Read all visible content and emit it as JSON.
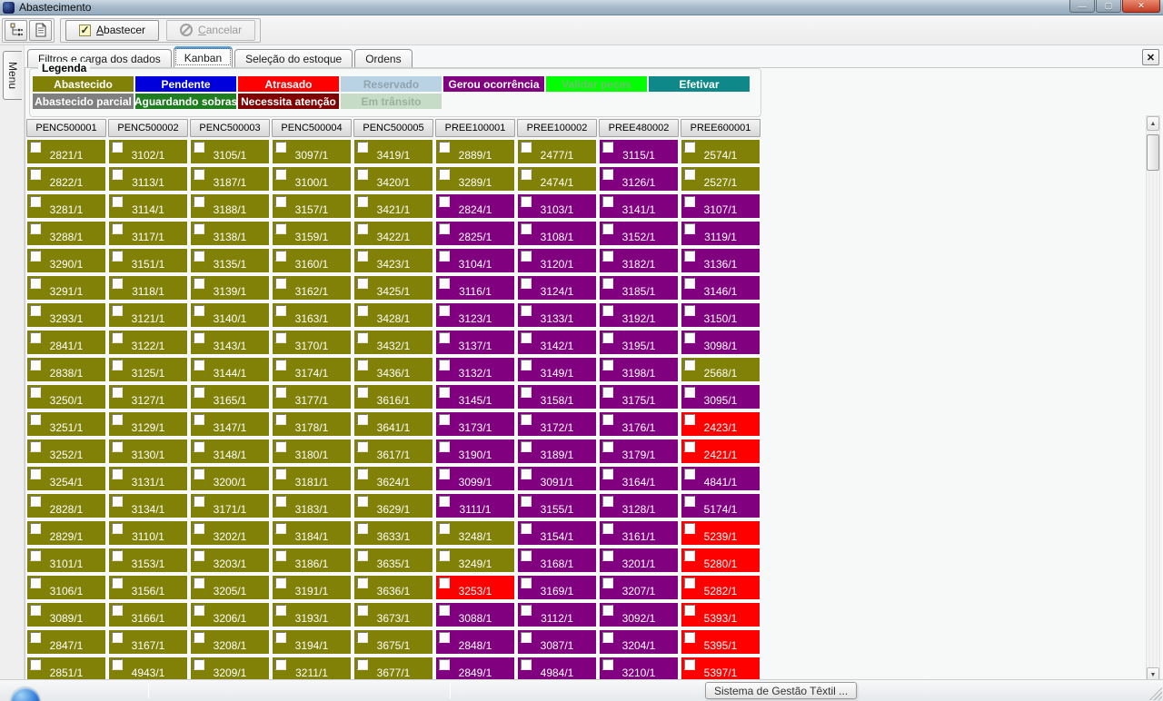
{
  "window": {
    "title": "Abastecimento"
  },
  "icons": {
    "minimize": "—",
    "maximize": "▢",
    "close": "✕",
    "check": "✓",
    "tab_close": "✕",
    "scroll_up": "▲",
    "scroll_down": "▼"
  },
  "toolbar": {
    "abastecer_label": "Abastecer",
    "cancelar_label": "Cancelar"
  },
  "menu_tab_label": "Menu",
  "tabs": {
    "items": [
      {
        "label": "Filtros e carga dos dados",
        "active": false
      },
      {
        "label": "Kanban",
        "active": true
      },
      {
        "label": "Seleção do estoque",
        "active": false
      },
      {
        "label": "Ordens",
        "active": false
      }
    ]
  },
  "legend": {
    "title": "Legenda",
    "rows": [
      [
        {
          "label": "Abastecido",
          "bg": "#818108",
          "fg": "#ffffff"
        },
        {
          "label": "Pendente",
          "bg": "#0000dd",
          "fg": "#ffffff"
        },
        {
          "label": "Atrasado",
          "bg": "#ff0000",
          "fg": "#ffffff"
        },
        {
          "label": "Reservado",
          "bg": "#bad3e4",
          "fg": "#8fa3b0"
        },
        {
          "label": "Gerou ocorrência",
          "bg": "#800080",
          "fg": "#ffffff"
        },
        {
          "label": "Validar peças",
          "bg": "#00ff00",
          "fg": "#6fbf6f"
        },
        {
          "label": "Efetivar",
          "bg": "#0e8888",
          "fg": "#ffffff"
        }
      ],
      [
        {
          "label": "Abastecido parcial",
          "bg": "#7f7f7f",
          "fg": "#ffffff"
        },
        {
          "label": "Aguardando sobras",
          "bg": "#1e7d1e",
          "fg": "#ffffff"
        },
        {
          "label": "Necessita atenção",
          "bg": "#800000",
          "fg": "#ffffff"
        },
        {
          "label": "Em trânsito",
          "bg": "#c7dcc7",
          "fg": "#9cb09c"
        }
      ]
    ]
  },
  "kanban": {
    "status_map": {
      "A": {
        "name": "abastecido",
        "color": "#818108"
      },
      "G": {
        "name": "gerou-ocorrencia",
        "color": "#800080"
      },
      "R": {
        "name": "atrasado",
        "color": "#ff0000"
      }
    },
    "columns": [
      {
        "header": "PENC500001",
        "cells": [
          "2821/1|A",
          "2822/1|A",
          "3281/1|A",
          "3288/1|A",
          "3290/1|A",
          "3291/1|A",
          "3293/1|A",
          "2841/1|A",
          "2838/1|A",
          "3250/1|A",
          "3251/1|A",
          "3252/1|A",
          "3254/1|A",
          "2828/1|A",
          "2829/1|A",
          "3101/1|A",
          "3106/1|A",
          "3089/1|A",
          "2847/1|A",
          "2851/1|A"
        ]
      },
      {
        "header": "PENC500002",
        "cells": [
          "3102/1|A",
          "3113/1|A",
          "3114/1|A",
          "3117/1|A",
          "3151/1|A",
          "3118/1|A",
          "3121/1|A",
          "3122/1|A",
          "3125/1|A",
          "3127/1|A",
          "3129/1|A",
          "3130/1|A",
          "3131/1|A",
          "3134/1|A",
          "3110/1|A",
          "3153/1|A",
          "3156/1|A",
          "3166/1|A",
          "3167/1|A",
          "4943/1|A"
        ]
      },
      {
        "header": "PENC500003",
        "cells": [
          "3105/1|A",
          "3187/1|A",
          "3188/1|A",
          "3138/1|A",
          "3135/1|A",
          "3139/1|A",
          "3140/1|A",
          "3143/1|A",
          "3144/1|A",
          "3165/1|A",
          "3147/1|A",
          "3148/1|A",
          "3200/1|A",
          "3171/1|A",
          "3202/1|A",
          "3203/1|A",
          "3205/1|A",
          "3206/1|A",
          "3208/1|A",
          "3209/1|A"
        ]
      },
      {
        "header": "PENC500004",
        "cells": [
          "3097/1|A",
          "3100/1|A",
          "3157/1|A",
          "3159/1|A",
          "3160/1|A",
          "3162/1|A",
          "3163/1|A",
          "3170/1|A",
          "3174/1|A",
          "3177/1|A",
          "3178/1|A",
          "3180/1|A",
          "3181/1|A",
          "3183/1|A",
          "3184/1|A",
          "3186/1|A",
          "3191/1|A",
          "3193/1|A",
          "3194/1|A",
          "3211/1|A"
        ]
      },
      {
        "header": "PENC500005",
        "cells": [
          "3419/1|A",
          "3420/1|A",
          "3421/1|A",
          "3422/1|A",
          "3423/1|A",
          "3425/1|A",
          "3428/1|A",
          "3432/1|A",
          "3436/1|A",
          "3616/1|A",
          "3641/1|A",
          "3617/1|A",
          "3624/1|A",
          "3629/1|A",
          "3633/1|A",
          "3635/1|A",
          "3636/1|A",
          "3673/1|A",
          "3675/1|A",
          "3677/1|A"
        ]
      },
      {
        "header": "PREE100001",
        "cells": [
          "2889/1|A",
          "3289/1|A",
          "2824/1|G",
          "2825/1|G",
          "3104/1|G",
          "3116/1|G",
          "3123/1|G",
          "3137/1|G",
          "3132/1|G",
          "3145/1|G",
          "3173/1|G",
          "3190/1|G",
          "3099/1|G",
          "3111/1|G",
          "3248/1|A",
          "3249/1|A",
          "3253/1|R",
          "3088/1|G",
          "2848/1|G",
          "2849/1|G"
        ]
      },
      {
        "header": "PREE100002",
        "cells": [
          "2477/1|A",
          "2474/1|A",
          "3103/1|G",
          "3108/1|G",
          "3120/1|G",
          "3124/1|G",
          "3133/1|G",
          "3142/1|G",
          "3149/1|G",
          "3158/1|G",
          "3172/1|G",
          "3189/1|G",
          "3091/1|G",
          "3155/1|G",
          "3154/1|G",
          "3168/1|G",
          "3169/1|G",
          "3112/1|G",
          "3087/1|G",
          "4984/1|G"
        ]
      },
      {
        "header": "PREE480002",
        "cells": [
          "3115/1|G",
          "3126/1|G",
          "3141/1|G",
          "3152/1|G",
          "3182/1|G",
          "3185/1|G",
          "3192/1|G",
          "3195/1|G",
          "3198/1|G",
          "3175/1|G",
          "3176/1|G",
          "3179/1|G",
          "3164/1|G",
          "3128/1|G",
          "3161/1|G",
          "3201/1|G",
          "3207/1|G",
          "3092/1|G",
          "3204/1|G",
          "3210/1|G"
        ]
      },
      {
        "header": "PREE600001",
        "cells": [
          "2574/1|A",
          "2527/1|A",
          "3107/1|G",
          "3119/1|G",
          "3136/1|G",
          "3146/1|G",
          "3150/1|G",
          "3098/1|G",
          "2568/1|A",
          "3095/1|G",
          "2423/1|R",
          "2421/1|R",
          "4841/1|G",
          "5174/1|G",
          "5239/1|R",
          "5280/1|R",
          "5282/1|R",
          "5393/1|R",
          "5395/1|R",
          "5397/1|R"
        ]
      }
    ]
  },
  "statusbar": {
    "taskbar_button_label": "Sistema de Gestão Têxtil ..."
  }
}
